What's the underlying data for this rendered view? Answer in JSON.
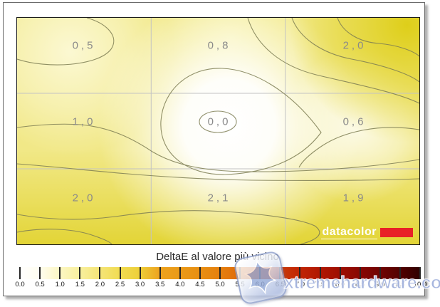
{
  "caption": {
    "title": "DeltaE al valore più vicino"
  },
  "plot": {
    "logo": {
      "text": "datacolor",
      "bar_color": "#e82127"
    }
  },
  "colorbar": {
    "tick_labels": [
      "0.0",
      "0.5",
      "1.0",
      "1.5",
      "2.0",
      "2.5",
      "3.0",
      "3.5",
      "4.0",
      "4.5",
      "5.0",
      "5.5",
      "6.0",
      "6.5",
      "7.0",
      "7.5",
      "8.0",
      "8.5",
      "9.0",
      "9.5",
      "10.0"
    ],
    "gradient_stops": [
      "#ffffff 0%",
      "#fffdf0 5%",
      "#fcf7c4 10%",
      "#f9f09e 15%",
      "#f5e578 20%",
      "#f1dc52 25%",
      "#edcf39 30%",
      "#eda21e 35%",
      "#ea9a18 40%",
      "#e88f12 45%",
      "#e5800e 50%",
      "#e06a08 55%",
      "#d9520a 60%",
      "#cb3806 65%",
      "#c02404 70%",
      "#b01703 75%",
      "#9e0e02 80%",
      "#880702 85%",
      "#700301 90%",
      "#520100 95%",
      "#2e0000 100%"
    ]
  },
  "watermark": {
    "text": "xtremehardware.com"
  },
  "colors": {
    "contour_line": "#7d7d52",
    "grid_line": "#c3c3c3",
    "value_label": "#8a8a8a",
    "plot_border": "#1a1a1a",
    "logo_red": "#e82127",
    "watermark_blue": "#8da0d5",
    "field_center": "#ffffff",
    "field_top_left": "#faf6d0",
    "field_top_right": "#e0d02a",
    "field_bottom": "#e6da4a"
  },
  "chart_data": {
    "type": "heatmap",
    "subtype": "contour-uniformity-map",
    "title": "DeltaE al valore più vicino",
    "rows": 3,
    "cols": 3,
    "values": [
      [
        0.5,
        0.8,
        2.0
      ],
      [
        1.0,
        0.0,
        0.6
      ],
      [
        2.0,
        2.1,
        1.9
      ]
    ],
    "display_values": [
      [
        "0,5",
        "0,8",
        "2,0"
      ],
      [
        "1,0",
        "0,0",
        "0,6"
      ],
      [
        "2,0",
        "2,1",
        "1,9"
      ]
    ],
    "colorbar_range": [
      0.0,
      10.0
    ],
    "colorbar_step": 0.5,
    "grid": "3x3 light-gray guide lines",
    "legend_position": "bottom"
  }
}
